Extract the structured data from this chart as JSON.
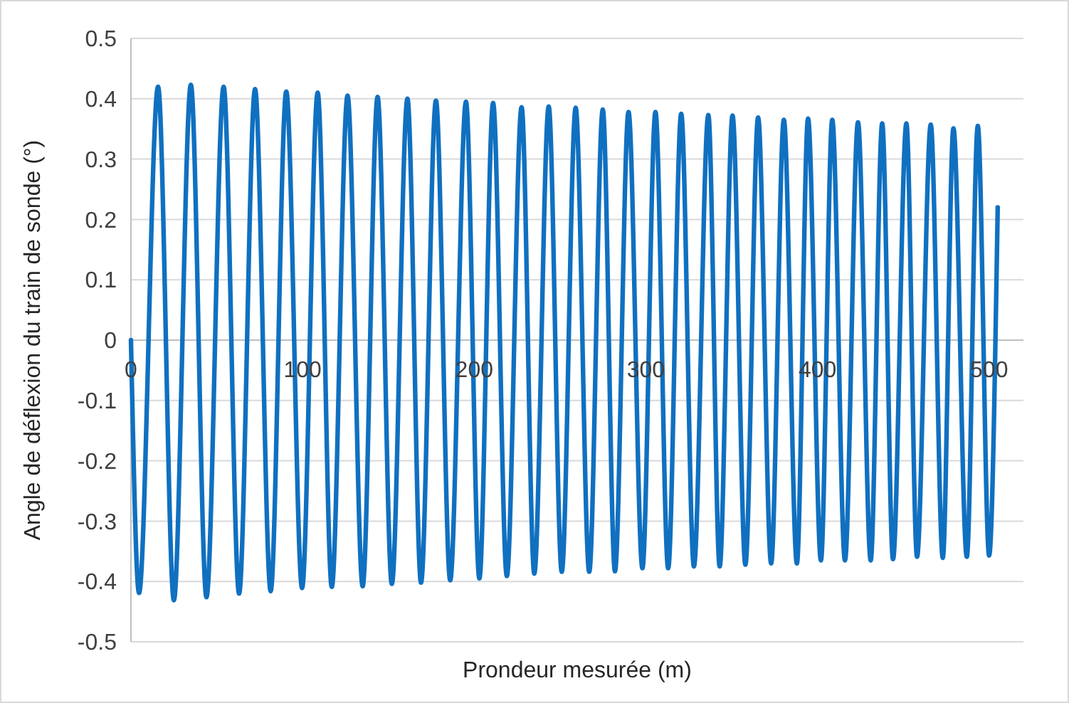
{
  "chart_data": {
    "type": "line",
    "xlabel": "Prondeur mesurée (m)",
    "ylabel": "Angle de déflexion du train de sonde (°)",
    "xlim": [
      0,
      520
    ],
    "xticks": [
      0,
      100,
      200,
      300,
      400,
      500
    ],
    "ylim": [
      -0.5,
      0.5
    ],
    "yticks": [
      -0.5,
      -0.4,
      -0.3,
      -0.2,
      -0.1,
      0,
      0.1,
      0.2,
      0.3,
      0.4,
      0.5
    ],
    "grid": "y",
    "marker": "none",
    "line_style": "solid",
    "series": [
      {
        "color": "#1070c0",
        "x": [
          0,
          4.7,
          15.8,
          25,
          34.9,
          44,
          54,
          63,
          72.3,
          81.4,
          90.5,
          99.7,
          108.8,
          117,
          126.2,
          135,
          143.7,
          152,
          161.1,
          169,
          177.7,
          186,
          195.2,
          203,
          211,
          219,
          227.6,
          235,
          243.4,
          251,
          259.1,
          267,
          274.9,
          282,
          289.9,
          298,
          305.6,
          313,
          320.6,
          328,
          336.4,
          343,
          350.5,
          358,
          365.4,
          373,
          380.4,
          388,
          394.5,
          402,
          408.6,
          416,
          423.6,
          431,
          437.7,
          444,
          451.8,
          458,
          466,
          473,
          479.2,
          487,
          493.4,
          500,
          505
        ],
        "values": [
          0,
          -0.419,
          0.42,
          -0.431,
          0.423,
          -0.426,
          0.42,
          -0.42,
          0.416,
          -0.416,
          0.412,
          -0.411,
          0.41,
          -0.409,
          0.405,
          -0.408,
          0.403,
          -0.404,
          0.4,
          -0.402,
          0.397,
          -0.398,
          0.395,
          -0.395,
          0.393,
          -0.391,
          0.386,
          -0.387,
          0.387,
          -0.384,
          0.385,
          -0.384,
          0.382,
          -0.383,
          0.378,
          -0.378,
          0.378,
          -0.378,
          0.375,
          -0.375,
          0.373,
          -0.375,
          0.372,
          -0.372,
          0.369,
          -0.37,
          0.365,
          -0.37,
          0.367,
          -0.365,
          0.365,
          -0.365,
          0.361,
          -0.365,
          0.359,
          -0.363,
          0.359,
          -0.359,
          0.357,
          -0.361,
          0.351,
          -0.359,
          0.355,
          -0.357,
          0.22
        ]
      }
    ]
  }
}
